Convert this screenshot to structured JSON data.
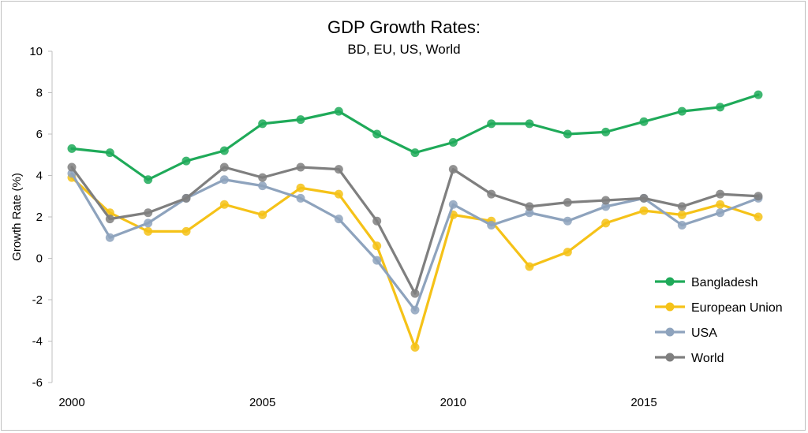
{
  "chart_data": {
    "type": "line",
    "title": "GDP Growth Rates:",
    "subtitle": "BD, EU, US, World",
    "xlabel": "",
    "ylabel": "Growth Rate (%)",
    "ylim": [
      -6,
      10
    ],
    "yticks": [
      -6,
      -4,
      -2,
      0,
      2,
      4,
      6,
      8,
      10
    ],
    "xlim": [
      2000,
      2018
    ],
    "xticks": [
      2000,
      2005,
      2010,
      2015
    ],
    "grid": false,
    "legend_position": "bottom-right",
    "x": [
      2000,
      2001,
      2002,
      2003,
      2004,
      2005,
      2006,
      2007,
      2008,
      2009,
      2010,
      2011,
      2012,
      2013,
      2014,
      2015,
      2016,
      2017,
      2018
    ],
    "series": [
      {
        "name": "Bangladesh",
        "color": "#1faa59",
        "values": [
          5.3,
          5.1,
          3.8,
          4.7,
          5.2,
          6.5,
          6.7,
          7.1,
          6.0,
          5.1,
          5.6,
          6.5,
          6.5,
          6.0,
          6.1,
          6.6,
          7.1,
          7.3,
          7.9
        ]
      },
      {
        "name": "European Union",
        "color": "#f5c218",
        "values": [
          3.9,
          2.2,
          1.3,
          1.3,
          2.6,
          2.1,
          3.4,
          3.1,
          0.6,
          -4.3,
          2.1,
          1.8,
          -0.4,
          0.3,
          1.7,
          2.3,
          2.1,
          2.6,
          2.0
        ]
      },
      {
        "name": "USA",
        "color": "#8ea3bd",
        "values": [
          4.1,
          1.0,
          1.7,
          2.9,
          3.8,
          3.5,
          2.9,
          1.9,
          -0.1,
          -2.5,
          2.6,
          1.6,
          2.2,
          1.8,
          2.5,
          2.9,
          1.6,
          2.2,
          2.9
        ]
      },
      {
        "name": "World",
        "color": "#7f7f7f",
        "values": [
          4.4,
          1.9,
          2.2,
          2.9,
          4.4,
          3.9,
          4.4,
          4.3,
          1.8,
          -1.7,
          4.3,
          3.1,
          2.5,
          2.7,
          2.8,
          2.9,
          2.5,
          3.1,
          3.0
        ]
      }
    ]
  }
}
